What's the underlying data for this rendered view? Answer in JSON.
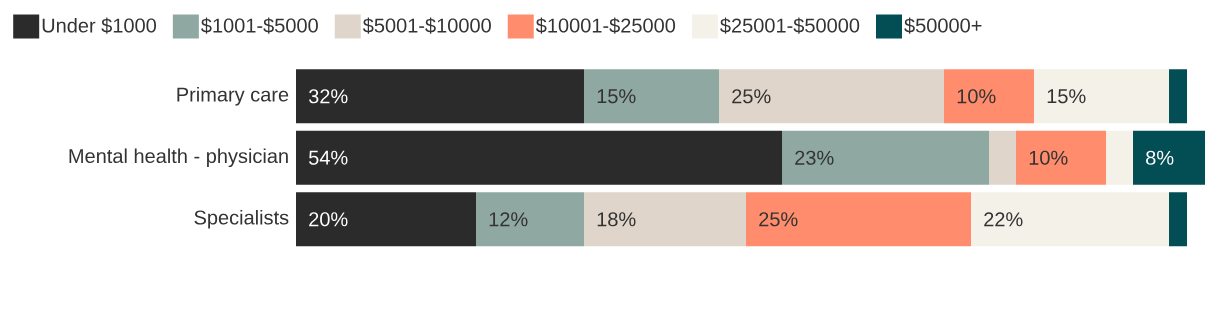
{
  "chart_data": {
    "type": "bar",
    "orientation": "horizontal",
    "stacked": true,
    "legend": "top",
    "tick_labels": "y",
    "categories": [
      "Primary care",
      "Mental health - physician",
      "Specialists"
    ],
    "series": [
      {
        "name": "Under $1000",
        "color": "#2b2b2b",
        "values": [
          32,
          54,
          20
        ],
        "value_labels": [
          "32%",
          "54%",
          "20%"
        ]
      },
      {
        "name": "$1001-$5000",
        "color": "#8fa8a2",
        "values": [
          15,
          23,
          12
        ],
        "value_labels": [
          "15%",
          "23%",
          "12%"
        ]
      },
      {
        "name": "$5001-$10000",
        "color": "#e0d5ca",
        "values": [
          25,
          3,
          18
        ],
        "value_labels": [
          "25%",
          null,
          "18%"
        ]
      },
      {
        "name": "$10001-$25000",
        "color": "#ff8d6d",
        "values": [
          10,
          10,
          25
        ],
        "value_labels": [
          "10%",
          "10%",
          "25%"
        ]
      },
      {
        "name": "$25001-$50000",
        "color": "#f4f1e9",
        "values": [
          15,
          3,
          22
        ],
        "value_labels": [
          "15%",
          null,
          "22%"
        ]
      },
      {
        "name": "$50000+",
        "color": "#034d54",
        "values": [
          2,
          8,
          2
        ],
        "value_labels": [
          null,
          "8%",
          null
        ]
      }
    ]
  }
}
